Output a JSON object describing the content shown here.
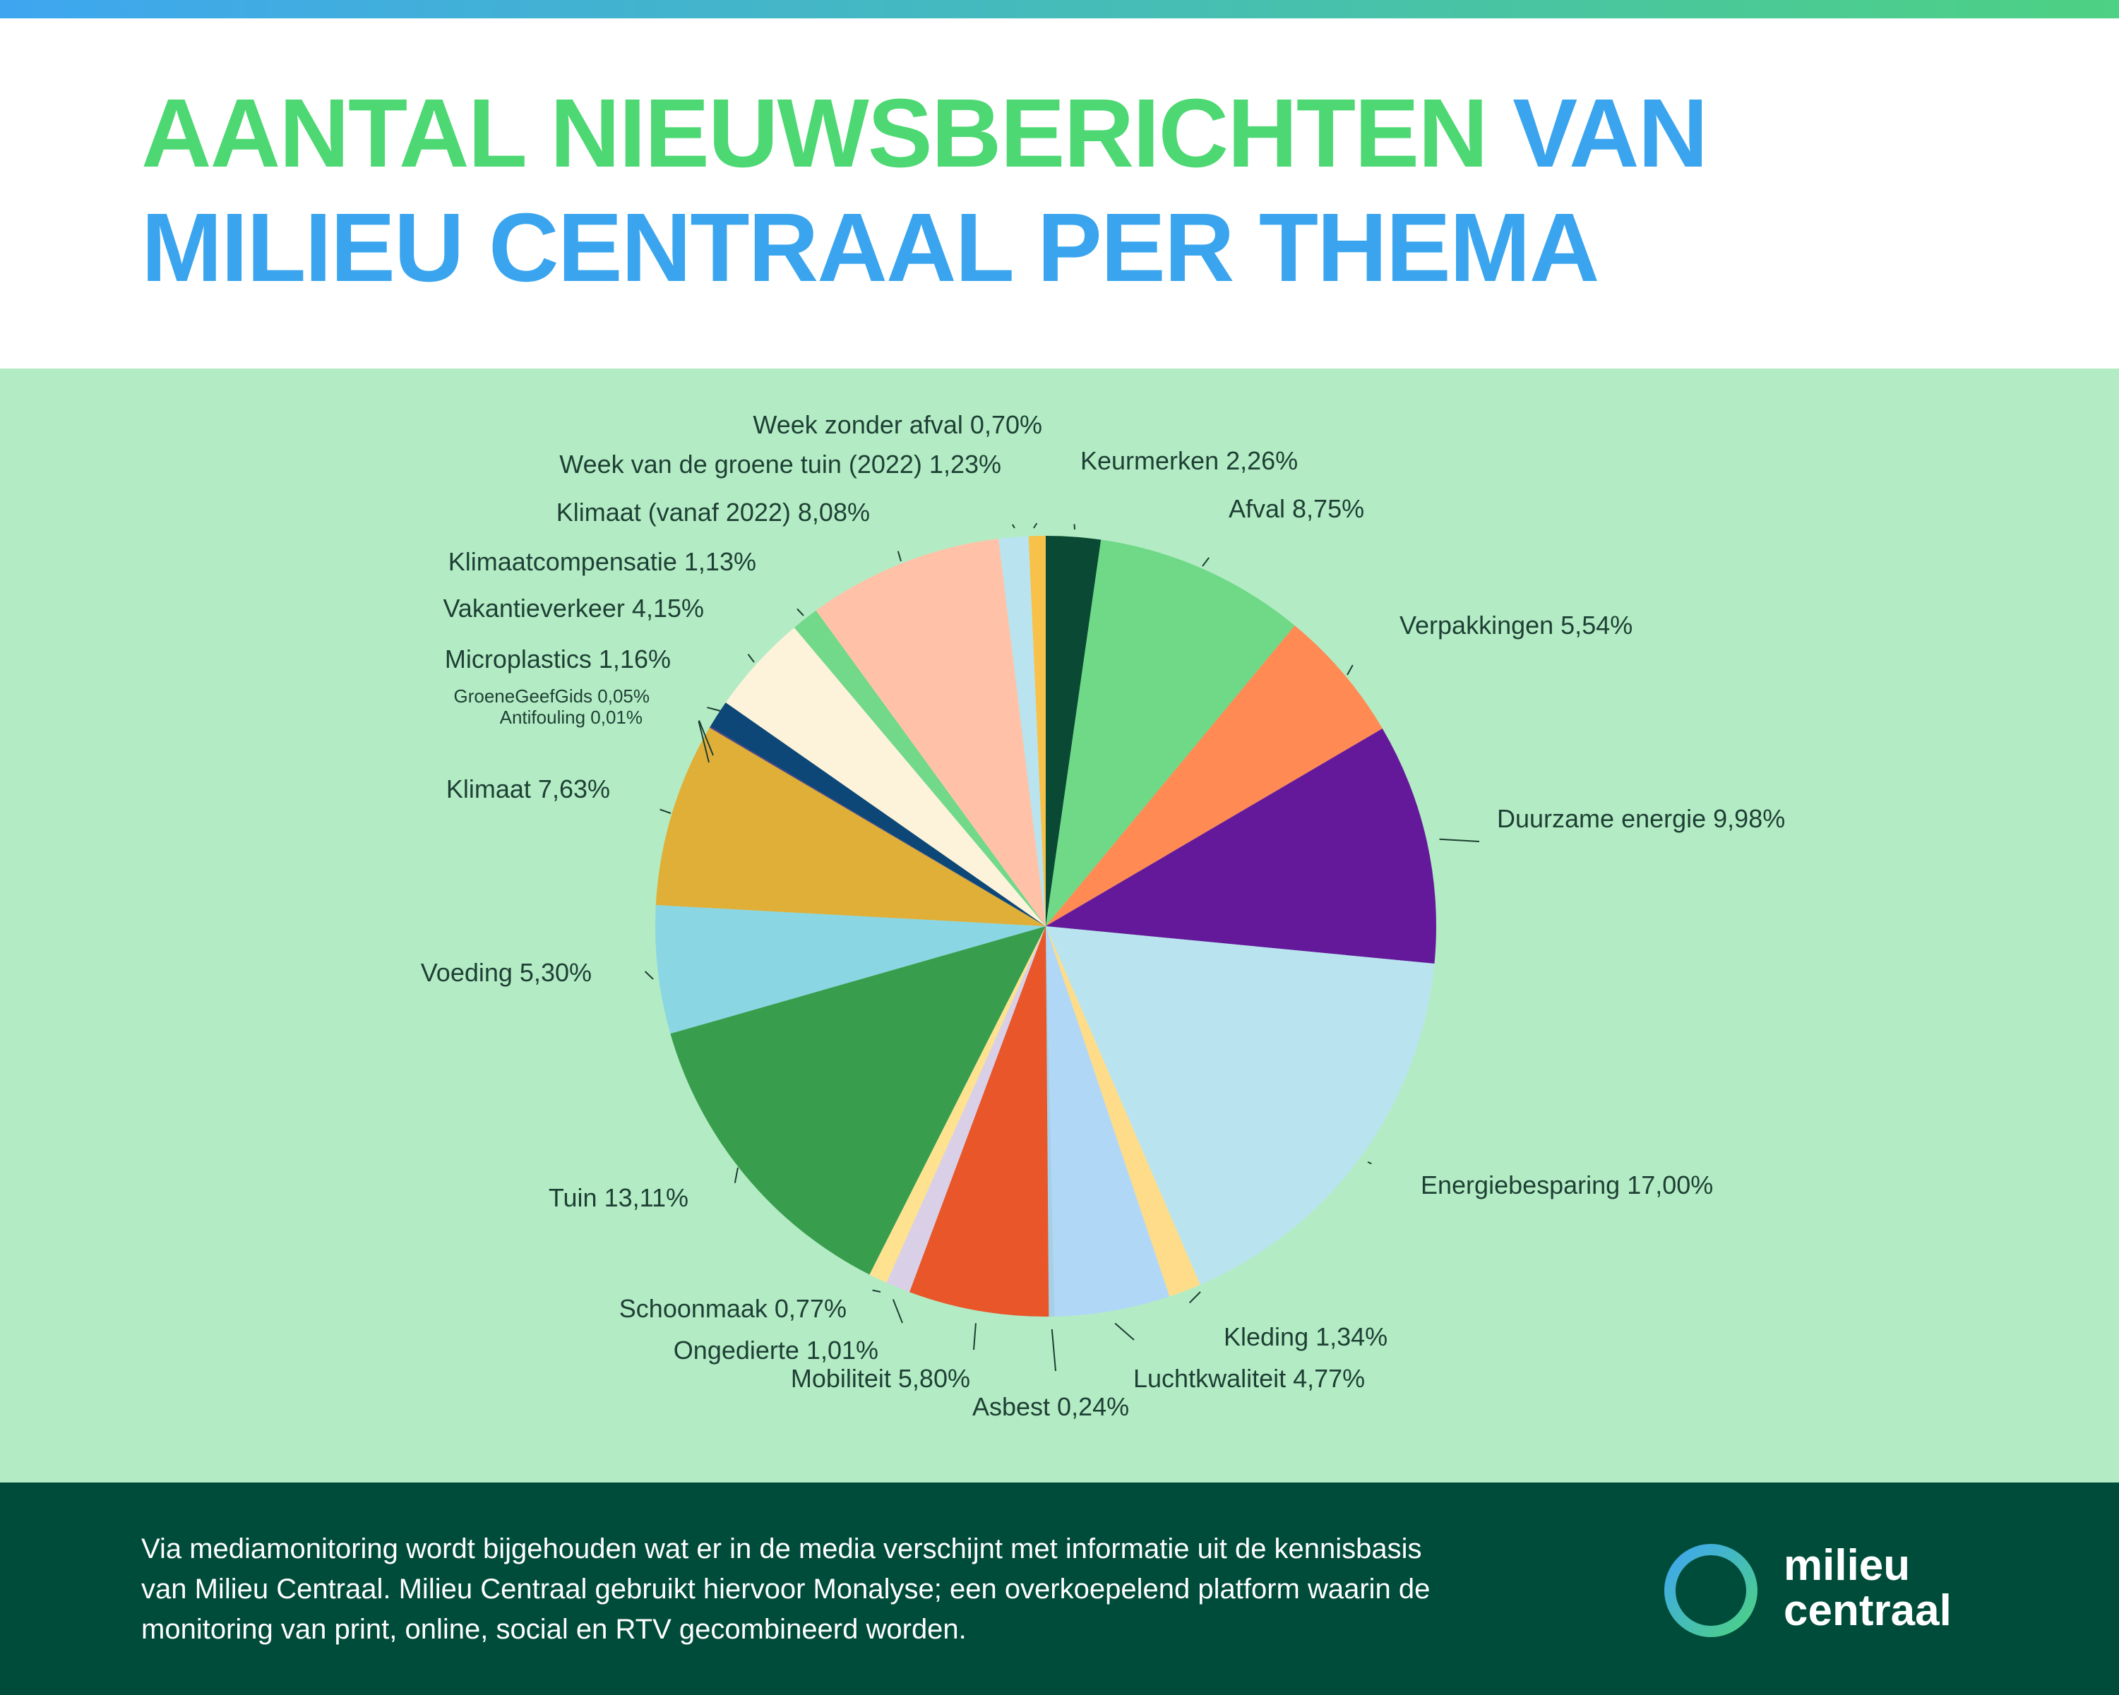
{
  "header": {
    "title_part1": "AANTAL NIEUWSBERICHTEN",
    "title_part2": "VAN",
    "title_line2": "MILIEU CENTRAAL PER THEMA",
    "accent_green": "#4dd873",
    "accent_blue": "#3aa5ee"
  },
  "chart_data": {
    "type": "pie",
    "title": "AANTAL NIEUWSBERICHTEN VAN MILIEU CENTRAAL PER THEMA",
    "slices": [
      {
        "name": "Keurmerken",
        "value": 2.26,
        "label": "Keurmerken 2,26%",
        "color": "#0a4a34"
      },
      {
        "name": "Afval",
        "value": 8.75,
        "label": "Afval 8,75%",
        "color": "#6fd987"
      },
      {
        "name": "Verpakkingen",
        "value": 5.54,
        "label": "Verpakkingen 5,54%",
        "color": "#ff8a54"
      },
      {
        "name": "Duurzame energie",
        "value": 9.98,
        "label": "Duurzame energie 9,98%",
        "color": "#64199b"
      },
      {
        "name": "Energiebesparing",
        "value": 17.0,
        "label": "Energiebesparing 17,00%",
        "color": "#b9e4ef"
      },
      {
        "name": "Kleding",
        "value": 1.34,
        "label": "Kleding 1,34%",
        "color": "#ffdc8a"
      },
      {
        "name": "Luchtkwaliteit",
        "value": 4.77,
        "label": "Luchtkwaliteit 4,77%",
        "color": "#b1d7f6"
      },
      {
        "name": "Asbest",
        "value": 0.24,
        "label": "Asbest 0,24%",
        "color": "#a7d0e8"
      },
      {
        "name": "Mobiliteit",
        "value": 5.8,
        "label": "Mobiliteit 5,80%",
        "color": "#e8562a"
      },
      {
        "name": "Ongedierte",
        "value": 1.01,
        "label": "Ongedierte 1,01%",
        "color": "#d9d0e8"
      },
      {
        "name": "Schoonmaak",
        "value": 0.77,
        "label": "Schoonmaak 0,77%",
        "color": "#ffe28f"
      },
      {
        "name": "Tuin",
        "value": 13.11,
        "label": "Tuin 13,11%",
        "color": "#389e4e"
      },
      {
        "name": "Voeding",
        "value": 5.3,
        "label": "Voeding 5,30%",
        "color": "#8bd6e3"
      },
      {
        "name": "Klimaat",
        "value": 7.63,
        "label": "Klimaat 7,63%",
        "color": "#e0af38"
      },
      {
        "name": "Antifouling",
        "value": 0.01,
        "label": "Antifouling 0,01%",
        "color": "#1a2e48"
      },
      {
        "name": "GroeneGeefGids",
        "value": 0.05,
        "label": "GroeneGeefGids 0,05%",
        "color": "#5a3a8a"
      },
      {
        "name": "Microplastics",
        "value": 1.16,
        "label": "Microplastics 1,16%",
        "color": "#0c4778"
      },
      {
        "name": "Vakantieverkeer",
        "value": 4.15,
        "label": "Vakantieverkeer 4,15%",
        "color": "#fdf2da"
      },
      {
        "name": "Klimaatcompensatie",
        "value": 1.13,
        "label": "Klimaatcompensatie 1,13%",
        "color": "#72d98a"
      },
      {
        "name": "Klimaat (vanaf 2022)",
        "value": 8.08,
        "label": "Klimaat (vanaf 2022) 8,08%",
        "color": "#ffc2a8"
      },
      {
        "name": "Week van de groene tuin (2022)",
        "value": 1.23,
        "label": "Week van de groene tuin (2022) 1,23%",
        "color": "#b9e4ef"
      },
      {
        "name": "Week zonder afval",
        "value": 0.7,
        "label": "Week zonder afval 0,70%",
        "color": "#f8c14a"
      }
    ]
  },
  "footer": {
    "text_line1": "Via mediamonitoring wordt bijgehouden wat er in de media verschijnt met informatie uit de kennisbasis",
    "text_line2": "van Milieu Centraal. Milieu Centraal gebruikt hiervoor Monalyse; een overkoepelend platform waarin de",
    "text_line3": "monitoring van print, online, social en RTV gecombineerd worden.",
    "brand_line1": "milieu",
    "brand_line2": "centraal"
  }
}
